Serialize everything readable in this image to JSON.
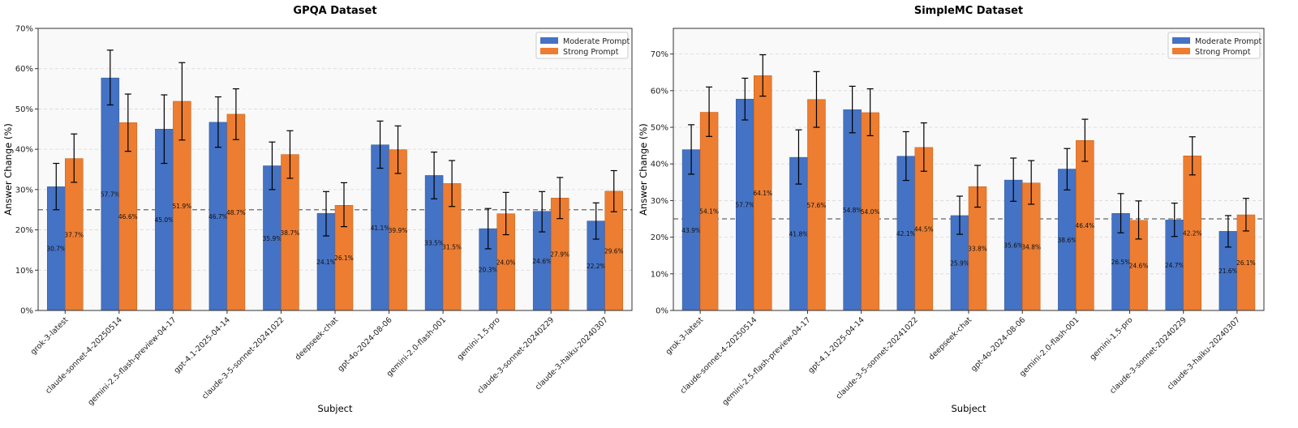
{
  "chart_data": [
    {
      "type": "bar",
      "title": "GPQA Dataset",
      "xlabel": "Subject",
      "ylabel": "Answer Change (%)",
      "ylim": [
        0,
        70
      ],
      "yticks": [
        0,
        10,
        20,
        30,
        40,
        50,
        60,
        70
      ],
      "grid": true,
      "legend_position": "top-right",
      "reference_line": 25,
      "categories": [
        "grok-3-latest",
        "claude-sonnet-4-20250514",
        "gemini-2.5-flash-preview-04-17",
        "gpt-4.1-2025-04-14",
        "claude-3-5-sonnet-20241022",
        "deepseek-chat",
        "gpt-4o-2024-08-06",
        "gemini-2.0-flash-001",
        "gemini-1.5-pro",
        "claude-3-sonnet-20240229",
        "claude-3-haiku-20240307"
      ],
      "series": [
        {
          "name": "Moderate Prompt",
          "color": "#4472c4",
          "values": [
            30.7,
            57.7,
            45.0,
            46.7,
            35.9,
            24.1,
            41.1,
            33.5,
            20.3,
            24.6,
            22.2
          ],
          "labels": [
            "30.7%",
            "57.7%",
            "45.0%",
            "46.7%",
            "35.9%",
            "24.1%",
            "41.1%",
            "33.5%",
            "20.3%",
            "24.6%",
            "22.2%"
          ],
          "err_low": [
            25.0,
            51.0,
            36.5,
            40.5,
            30.0,
            18.5,
            35.3,
            27.7,
            15.3,
            19.5,
            17.7
          ],
          "err_high": [
            36.5,
            64.6,
            53.5,
            53.0,
            41.8,
            29.5,
            47.0,
            39.3,
            25.3,
            29.5,
            26.7
          ]
        },
        {
          "name": "Strong Prompt",
          "color": "#ed7d31",
          "values": [
            37.7,
            46.6,
            51.9,
            48.7,
            38.7,
            26.1,
            39.9,
            31.5,
            24.0,
            27.9,
            29.6
          ],
          "labels": [
            "37.7%",
            "46.6%",
            "51.9%",
            "48.7%",
            "38.7%",
            "26.1%",
            "39.9%",
            "31.5%",
            "24.0%",
            "27.9%",
            "29.6%"
          ],
          "err_low": [
            31.8,
            39.5,
            42.3,
            42.4,
            32.8,
            20.8,
            34.0,
            25.8,
            18.8,
            22.8,
            24.5
          ],
          "err_high": [
            43.8,
            53.7,
            61.5,
            55.0,
            44.6,
            31.7,
            45.8,
            37.2,
            29.3,
            33.0,
            34.7
          ]
        }
      ]
    },
    {
      "type": "bar",
      "title": "SimpleMC Dataset",
      "xlabel": "Subject",
      "ylabel": "Answer Change (%)",
      "ylim": [
        0,
        77
      ],
      "yticks": [
        0,
        10,
        20,
        30,
        40,
        50,
        60,
        70
      ],
      "grid": true,
      "legend_position": "top-right",
      "reference_line": 25,
      "categories": [
        "grok-3-latest",
        "claude-sonnet-4-20250514",
        "gemini-2.5-flash-preview-04-17",
        "gpt-4.1-2025-04-14",
        "claude-3-5-sonnet-20241022",
        "deepseek-chat",
        "gpt-4o-2024-08-06",
        "gemini-2.0-flash-001",
        "gemini-1.5-pro",
        "claude-3-sonnet-20240229",
        "claude-3-haiku-20240307"
      ],
      "series": [
        {
          "name": "Moderate Prompt",
          "color": "#4472c4",
          "values": [
            43.9,
            57.7,
            41.8,
            54.8,
            42.1,
            25.9,
            35.6,
            38.6,
            26.5,
            24.7,
            21.6
          ],
          "labels": [
            "43.9%",
            "57.7%",
            "41.8%",
            "54.8%",
            "42.1%",
            "25.9%",
            "35.6%",
            "38.6%",
            "26.5%",
            "24.7%",
            "21.6%"
          ],
          "err_low": [
            37.2,
            52.0,
            34.5,
            48.5,
            35.5,
            20.8,
            29.8,
            32.9,
            21.2,
            20.2,
            17.3
          ],
          "err_high": [
            50.7,
            63.4,
            49.3,
            61.2,
            48.8,
            31.2,
            41.6,
            44.2,
            31.9,
            29.3,
            25.9
          ]
        },
        {
          "name": "Strong Prompt",
          "color": "#ed7d31",
          "values": [
            54.1,
            64.1,
            57.6,
            54.0,
            44.5,
            33.8,
            34.8,
            46.4,
            24.6,
            42.2,
            26.1
          ],
          "labels": [
            "54.1%",
            "64.1%",
            "57.6%",
            "54.0%",
            "44.5%",
            "33.8%",
            "34.8%",
            "46.4%",
            "24.6%",
            "42.2%",
            "26.1%"
          ],
          "err_low": [
            47.5,
            58.5,
            50.0,
            47.7,
            38.0,
            28.2,
            29.0,
            40.7,
            19.5,
            37.0,
            21.7
          ],
          "err_high": [
            61.0,
            69.8,
            65.2,
            60.5,
            51.2,
            39.6,
            40.9,
            52.2,
            29.9,
            47.4,
            30.6
          ]
        }
      ]
    }
  ]
}
